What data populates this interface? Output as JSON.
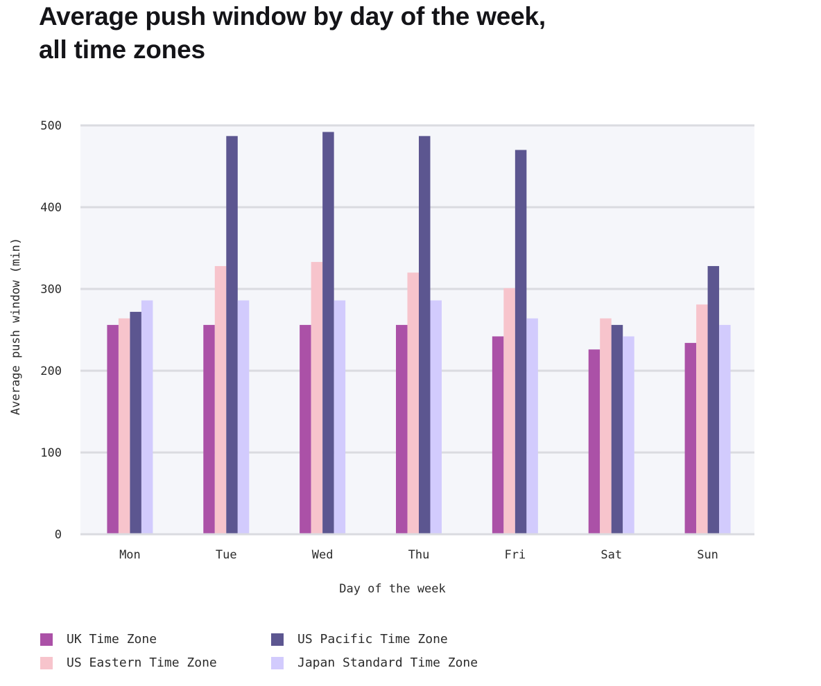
{
  "title": {
    "line1": "Average push window by day of the week,",
    "line2": "all time zones"
  },
  "chart_data": {
    "type": "bar",
    "title": "Average push window by day of the week, all time zones",
    "xlabel": "Day of the week",
    "ylabel": "Average push window (min)",
    "ylim": [
      0,
      500
    ],
    "yticks": [
      0,
      100,
      200,
      300,
      400,
      500
    ],
    "grid": true,
    "legend_position": "bottom-left",
    "categories": [
      "Mon",
      "Tue",
      "Wed",
      "Thu",
      "Fri",
      "Sat",
      "Sun"
    ],
    "series": [
      {
        "name": "UK Time Zone",
        "color": "#ab51a7",
        "values": [
          256,
          256,
          256,
          256,
          242,
          226,
          234
        ]
      },
      {
        "name": "US Eastern Time Zone",
        "color": "#f7c4cc",
        "values": [
          264,
          328,
          333,
          320,
          301,
          264,
          281
        ]
      },
      {
        "name": "US Pacific Time Zone",
        "color": "#5c5690",
        "values": [
          272,
          487,
          492,
          487,
          470,
          256,
          328
        ]
      },
      {
        "name": "Japan Standard Time Zone",
        "color": "#d2cbfd",
        "values": [
          286,
          286,
          286,
          286,
          264,
          242,
          256
        ]
      }
    ]
  },
  "colors": {
    "plot_background": "#f5f6fa",
    "gridline": "#dadbe0"
  }
}
